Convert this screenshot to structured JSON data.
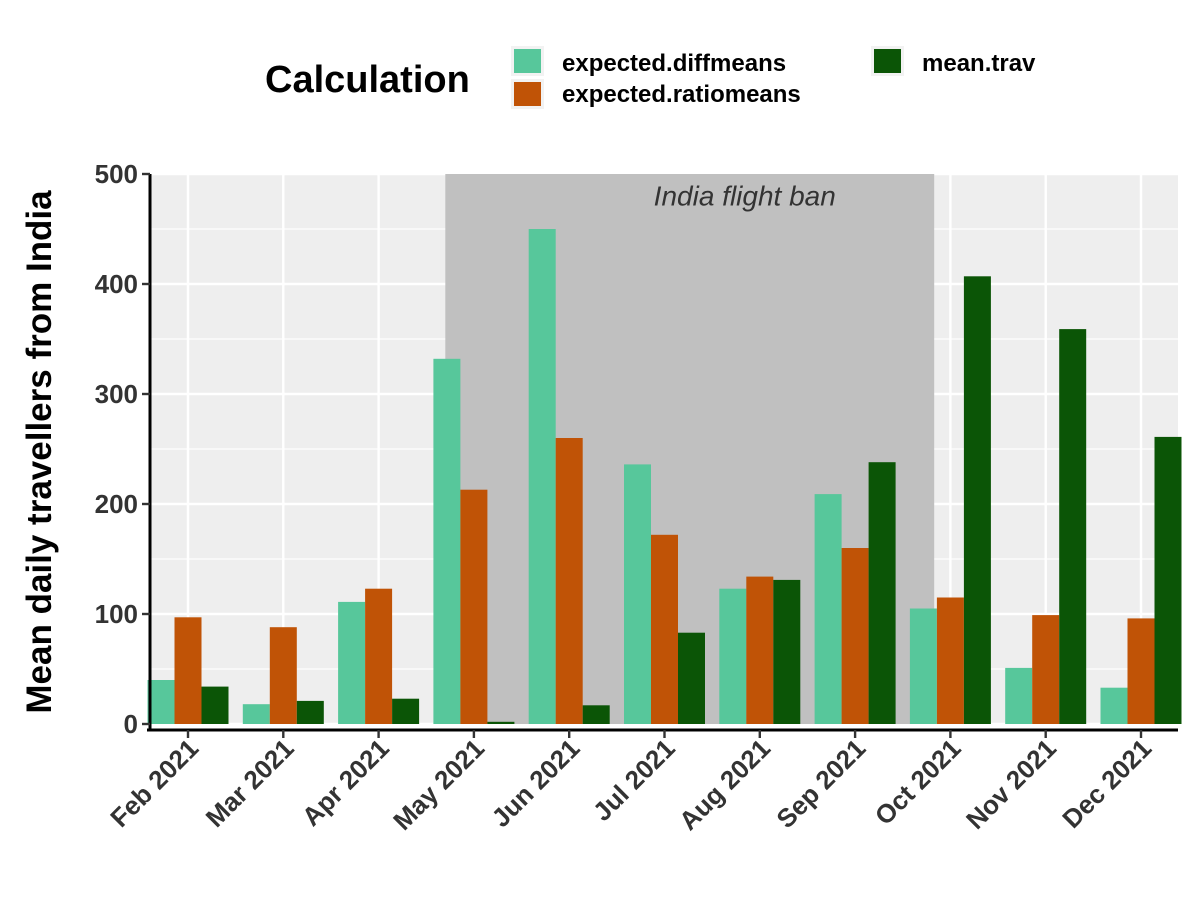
{
  "chart_data": {
    "type": "bar",
    "ylabel": "Mean daily travellers from India",
    "xlabel": "",
    "ylim": [
      0,
      500
    ],
    "yticks": [
      0,
      100,
      200,
      300,
      400,
      500
    ],
    "grid": true,
    "legend": {
      "title": "Calculation",
      "position": "top"
    },
    "categories": [
      "Feb 2021",
      "Mar 2021",
      "Apr 2021",
      "May 2021",
      "Jun 2021",
      "Jul 2021",
      "Aug 2021",
      "Sep 2021",
      "Oct 2021",
      "Nov 2021",
      "Dec 2021"
    ],
    "series": [
      {
        "name": "expected.diffmeans",
        "color": "#57C79B",
        "values": [
          40,
          18,
          111,
          332,
          450,
          236,
          123,
          209,
          105,
          51,
          33
        ]
      },
      {
        "name": "expected.ratiomeans",
        "color": "#C05306",
        "values": [
          97,
          88,
          123,
          213,
          260,
          172,
          134,
          160,
          115,
          99,
          96
        ]
      },
      {
        "name": "mean.trav",
        "color": "#0B5506",
        "values": [
          34,
          21,
          23,
          2,
          17,
          83,
          131,
          238,
          407,
          359,
          261
        ]
      }
    ],
    "annotations": [
      {
        "text": "India flight ban",
        "x_start": "May 2021",
        "x_end": "Oct 2021"
      }
    ],
    "colors": {
      "panel": "#EEEEEE",
      "shade": "#C0C0C0",
      "grid": "#FFFFFF"
    }
  }
}
